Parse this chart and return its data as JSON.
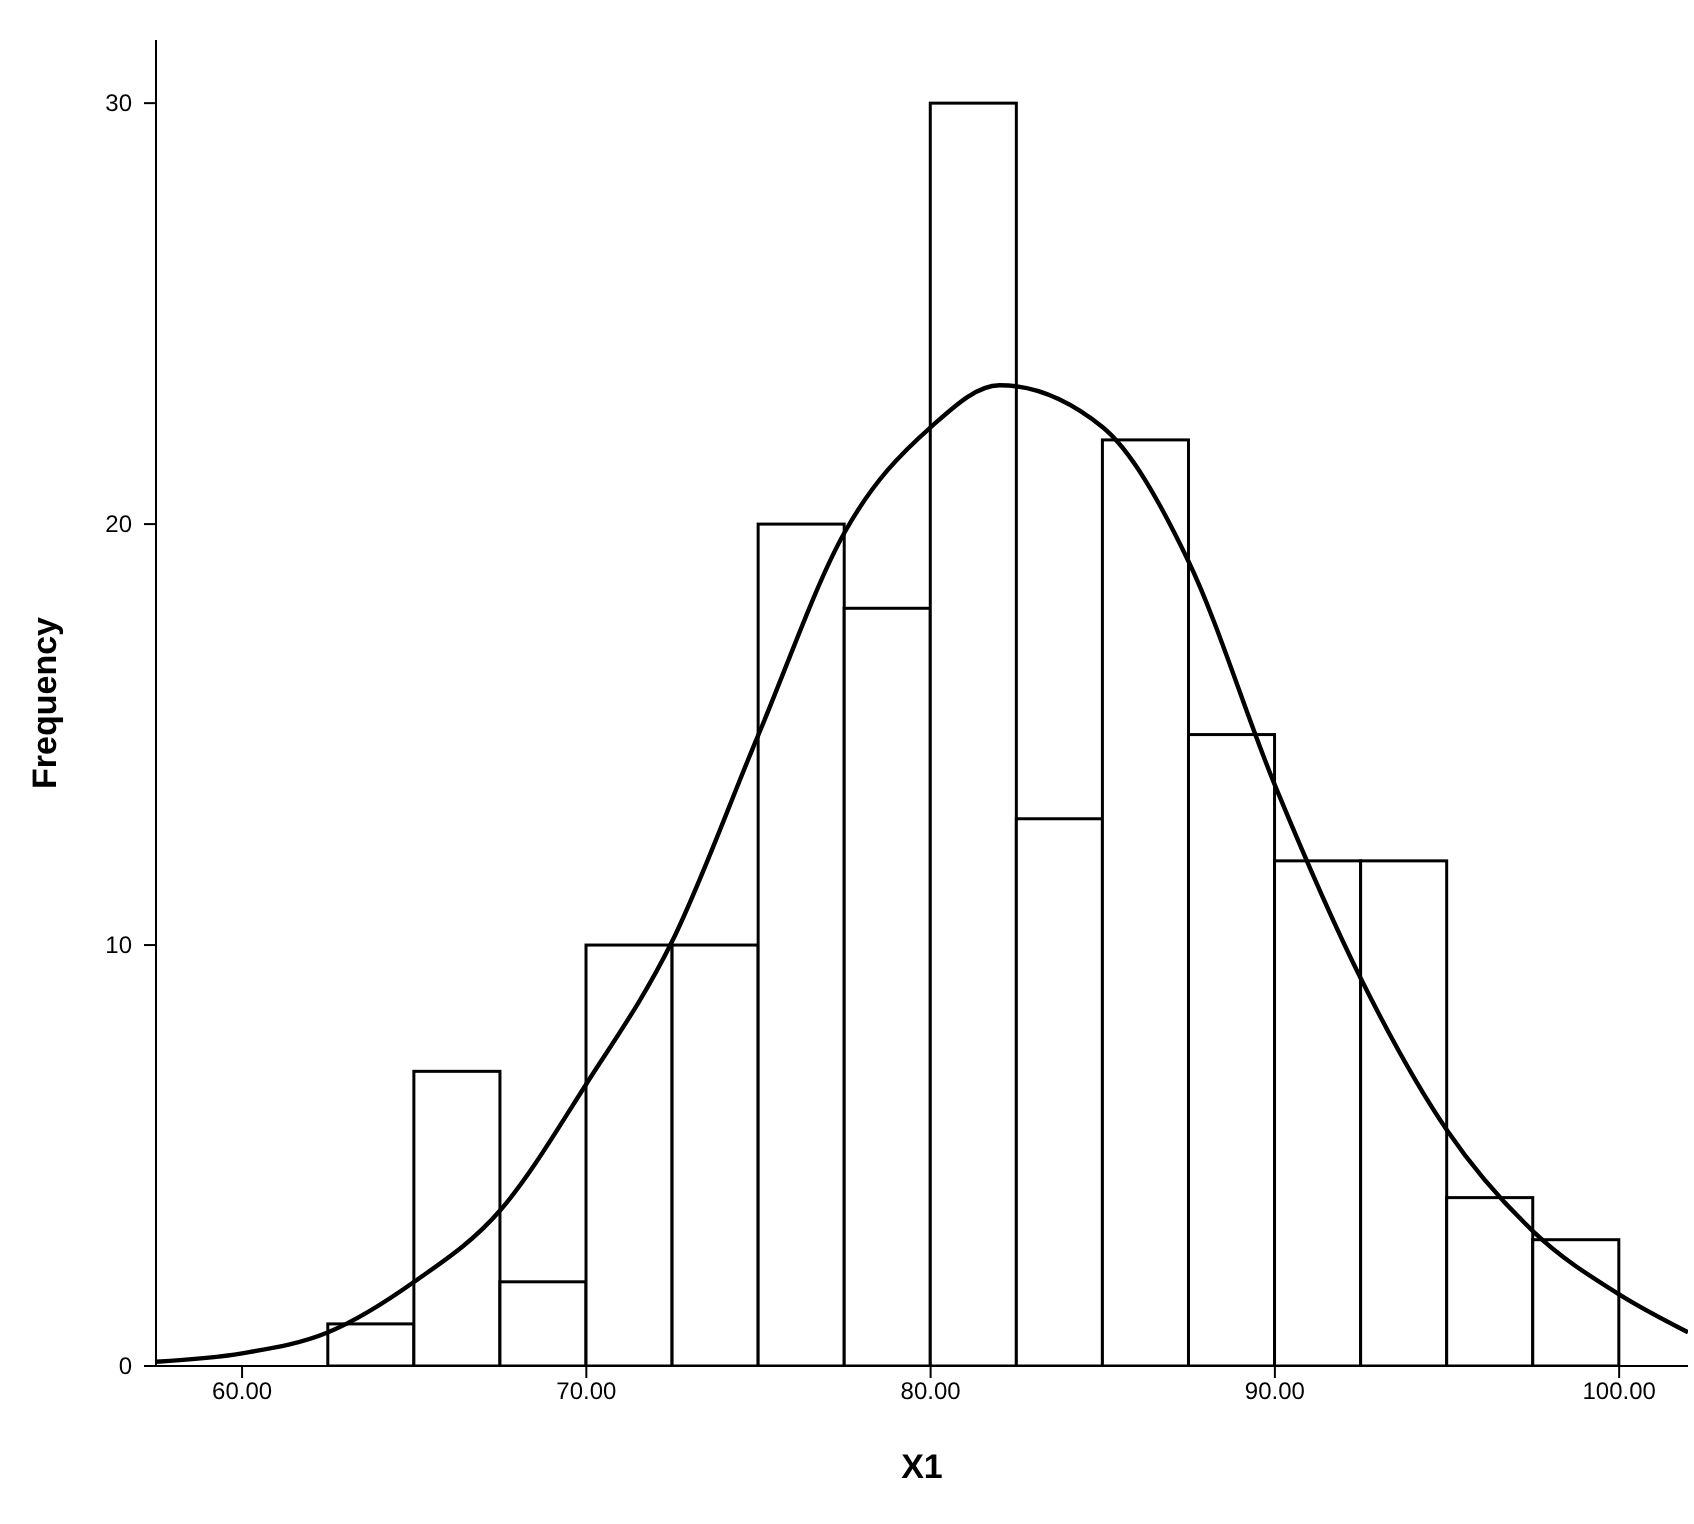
{
  "chart_data": {
    "type": "histogram",
    "xlabel": "X1",
    "ylabel": "Frequency",
    "bins": [
      62.5,
      65,
      67.5,
      70,
      72.5,
      75,
      77.5,
      80,
      82.5,
      85,
      87.5,
      90,
      92.5,
      95,
      97.5,
      100
    ],
    "values": [
      1,
      7,
      2,
      10,
      10,
      20,
      18,
      30,
      13,
      22,
      15,
      12,
      12,
      4,
      3
    ],
    "color": "#ffffff",
    "series": [
      {
        "type": "line",
        "color": "#000000",
        "x": [
          57.5,
          60,
          62.5,
          65,
          67.5,
          70,
          72.5,
          75,
          77.5,
          80,
          82,
          85,
          87.5,
          90,
          92.5,
          95,
          97.5,
          100,
          102
        ],
        "values": [
          0.1,
          0.3,
          0.8,
          2.0,
          3.7,
          6.7,
          10.1,
          15,
          19.8,
          22.3,
          23.3,
          22.3,
          19.1,
          13.8,
          9.2,
          5.6,
          3.2,
          1.7,
          0.8
        ]
      }
    ],
    "marker": "none",
    "line_style": "solid",
    "xlim": [
      57.5,
      102
    ],
    "xticks": [
      {
        "value": 60,
        "label": "60.00"
      },
      {
        "value": 70,
        "label": "70.00"
      },
      {
        "value": 80,
        "label": "80.00"
      },
      {
        "value": 90,
        "label": "90.00"
      },
      {
        "value": 100,
        "label": "100.00"
      }
    ],
    "ylim": [
      0,
      31.5
    ],
    "yticks": [
      0,
      10,
      20,
      30
    ]
  }
}
